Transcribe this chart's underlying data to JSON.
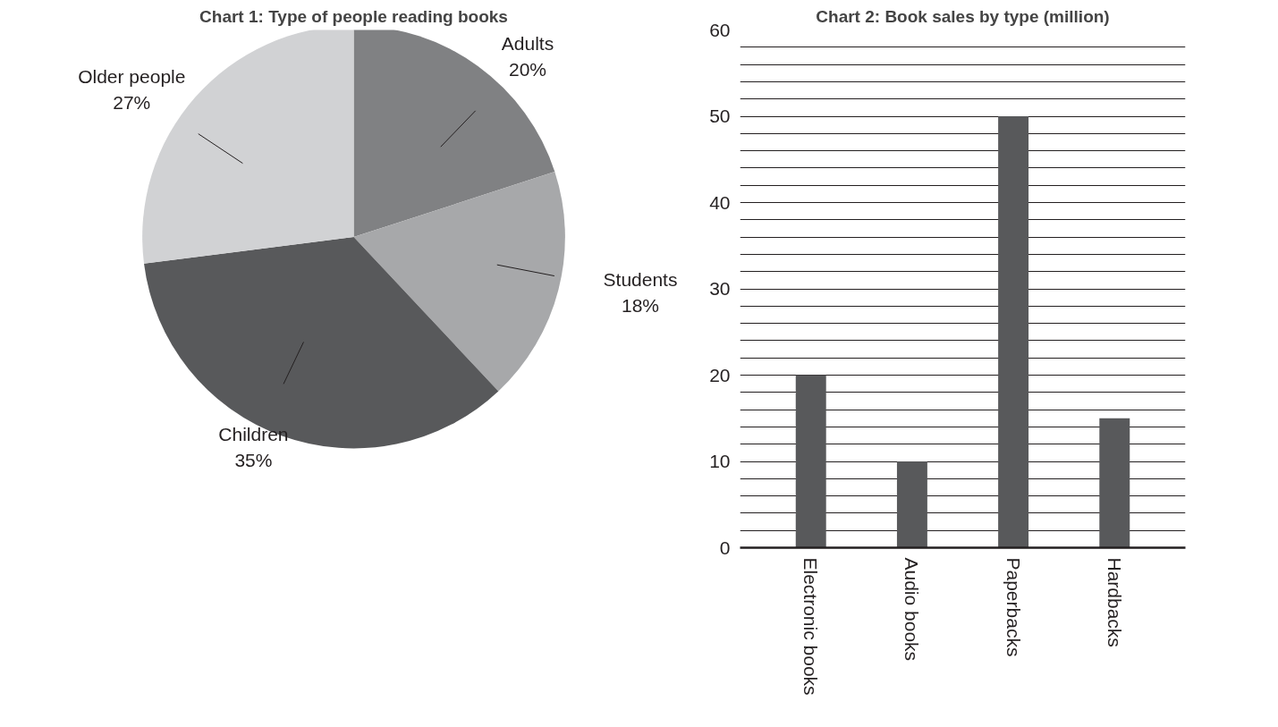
{
  "chart_data": [
    {
      "type": "pie",
      "title": "Chart 1: Type of people reading books",
      "categories": [
        "Adults",
        "Students",
        "Children",
        "Older people"
      ],
      "values": [
        20,
        18,
        35,
        27
      ],
      "colors": [
        "#808183",
        "#a7a8aa",
        "#58595b",
        "#d1d2d4"
      ],
      "value_labels": [
        "20%",
        "18%",
        "35%",
        "27%"
      ]
    },
    {
      "type": "bar",
      "title": "Chart 2: Book sales by type (million)",
      "categories": [
        "Electronic books",
        "Audio books",
        "Paperbacks",
        "Hardbacks"
      ],
      "values": [
        20,
        10,
        50,
        15
      ],
      "color": "#58595b",
      "ylim": [
        0,
        60
      ],
      "yticks": [
        0,
        {
          "value": 2,
          "label": null
        },
        {
          "value": 4,
          "label": null
        },
        {
          "value": 6,
          "label": null
        },
        {
          "value": 8,
          "label": null
        },
        10,
        {
          "value": 12,
          "label": null
        },
        {
          "value": 14,
          "label": null
        },
        {
          "value": 16,
          "label": null
        },
        {
          "value": 18,
          "label": null
        },
        20,
        {
          "value": 22,
          "label": null
        },
        {
          "value": 24,
          "label": null
        },
        {
          "value": 26,
          "label": null
        },
        {
          "value": 28,
          "label": null
        },
        30,
        {
          "value": 32,
          "label": null
        },
        {
          "value": 34,
          "label": null
        },
        {
          "value": 36,
          "label": null
        },
        {
          "value": 38,
          "label": null
        },
        40,
        {
          "value": 42,
          "label": null
        },
        {
          "value": 44,
          "label": null
        },
        {
          "value": 46,
          "label": null
        },
        {
          "value": 48,
          "label": null
        },
        50,
        {
          "value": 52,
          "label": null
        },
        {
          "value": 54,
          "label": null
        },
        {
          "value": 56,
          "label": null
        },
        {
          "value": 58,
          "label": null
        },
        60
      ],
      "grid": "y"
    }
  ]
}
